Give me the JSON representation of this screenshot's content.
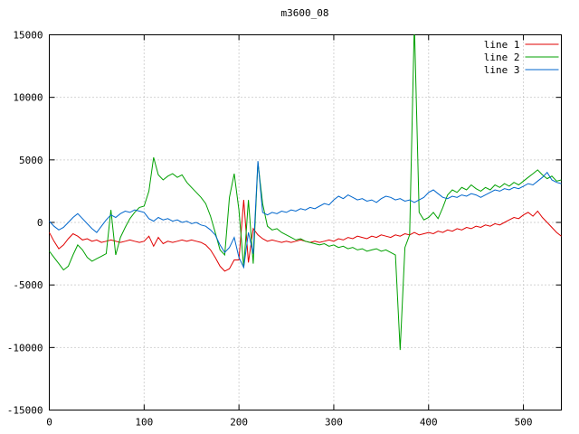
{
  "chart_data": {
    "type": "line",
    "title": "m3600_08",
    "xlabel": "",
    "ylabel": "",
    "xlim": [
      0,
      540
    ],
    "ylim": [
      -15000,
      15000
    ],
    "xticks": [
      0,
      100,
      200,
      300,
      400,
      500
    ],
    "yticks": [
      -15000,
      -10000,
      -5000,
      0,
      5000,
      10000,
      15000
    ],
    "grid": "dotted",
    "legend_position": "top-right-inside",
    "x": [
      0,
      5,
      10,
      15,
      20,
      25,
      30,
      35,
      40,
      45,
      50,
      55,
      60,
      65,
      70,
      75,
      80,
      85,
      90,
      95,
      100,
      105,
      110,
      115,
      120,
      125,
      130,
      135,
      140,
      145,
      150,
      155,
      160,
      165,
      170,
      175,
      180,
      185,
      190,
      195,
      200,
      205,
      210,
      215,
      220,
      225,
      230,
      235,
      240,
      245,
      250,
      255,
      260,
      265,
      270,
      275,
      280,
      285,
      290,
      295,
      300,
      305,
      310,
      315,
      320,
      325,
      330,
      335,
      340,
      345,
      350,
      355,
      360,
      365,
      370,
      375,
      380,
      385,
      390,
      395,
      400,
      405,
      410,
      415,
      420,
      425,
      430,
      435,
      440,
      445,
      450,
      455,
      460,
      465,
      470,
      475,
      480,
      485,
      490,
      495,
      500,
      505,
      510,
      515,
      520,
      525,
      530,
      535,
      540
    ],
    "series": [
      {
        "name": "line 1",
        "color": "#e00000",
        "values": [
          -800,
          -1500,
          -2100,
          -1800,
          -1300,
          -900,
          -1100,
          -1400,
          -1300,
          -1500,
          -1400,
          -1600,
          -1500,
          -1400,
          -1500,
          -1600,
          -1500,
          -1400,
          -1500,
          -1600,
          -1500,
          -1100,
          -1900,
          -1200,
          -1700,
          -1500,
          -1600,
          -1500,
          -1400,
          -1500,
          -1400,
          -1500,
          -1600,
          -1800,
          -2200,
          -2800,
          -3500,
          -3900,
          -3700,
          -3000,
          -3000,
          1800,
          -3200,
          -500,
          -1000,
          -1300,
          -1500,
          -1400,
          -1500,
          -1600,
          -1500,
          -1600,
          -1500,
          -1400,
          -1500,
          -1600,
          -1500,
          -1600,
          -1500,
          -1400,
          -1500,
          -1300,
          -1400,
          -1200,
          -1300,
          -1100,
          -1200,
          -1300,
          -1100,
          -1200,
          -1000,
          -1100,
          -1200,
          -1000,
          -1100,
          -900,
          -1000,
          -800,
          -1000,
          -900,
          -800,
          -900,
          -700,
          -800,
          -600,
          -700,
          -500,
          -600,
          -400,
          -500,
          -300,
          -400,
          -200,
          -300,
          -100,
          -200,
          0,
          200,
          400,
          300,
          600,
          800,
          500,
          900,
          400,
          0,
          -400,
          -800,
          -1100
        ]
      },
      {
        "name": "line 2",
        "color": "#00a000",
        "values": [
          -2300,
          -2800,
          -3300,
          -3800,
          -3500,
          -2600,
          -1800,
          -2200,
          -2800,
          -3100,
          -2900,
          -2700,
          -2500,
          1000,
          -2600,
          -1200,
          -400,
          300,
          800,
          1200,
          1300,
          2500,
          5200,
          3800,
          3400,
          3700,
          3900,
          3600,
          3800,
          3200,
          2800,
          2400,
          2000,
          1500,
          500,
          -800,
          -2200,
          -2600,
          2000,
          3900,
          1000,
          -3600,
          1800,
          -3300,
          4800,
          1500,
          -300,
          -600,
          -500,
          -800,
          -1000,
          -1200,
          -1400,
          -1300,
          -1500,
          -1600,
          -1700,
          -1800,
          -1700,
          -1900,
          -1800,
          -2000,
          -1900,
          -2100,
          -2000,
          -2200,
          -2100,
          -2300,
          -2200,
          -2100,
          -2300,
          -2200,
          -2400,
          -2600,
          -10200,
          -2000,
          -1000,
          16000,
          800,
          200,
          400,
          800,
          300,
          1200,
          2200,
          2600,
          2400,
          2800,
          2600,
          3000,
          2700,
          2500,
          2800,
          2600,
          3000,
          2800,
          3100,
          2900,
          3200,
          3000,
          3300,
          3600,
          3900,
          4200,
          3800,
          3500,
          3700,
          3300,
          3400
        ]
      },
      {
        "name": "line 3",
        "color": "#0066cc",
        "values": [
          100,
          -300,
          -600,
          -400,
          0,
          400,
          700,
          300,
          -100,
          -500,
          -800,
          -300,
          200,
          600,
          400,
          700,
          900,
          800,
          1000,
          900,
          800,
          300,
          100,
          400,
          200,
          300,
          100,
          200,
          0,
          100,
          -100,
          0,
          -200,
          -300,
          -600,
          -1000,
          -1800,
          -2400,
          -2000,
          -1200,
          -2800,
          -3600,
          -800,
          -2500,
          4900,
          800,
          600,
          800,
          700,
          900,
          800,
          1000,
          900,
          1100,
          1000,
          1200,
          1100,
          1300,
          1500,
          1400,
          1800,
          2100,
          1900,
          2200,
          2000,
          1800,
          1900,
          1700,
          1800,
          1600,
          1900,
          2100,
          2000,
          1800,
          1900,
          1700,
          1800,
          1600,
          1800,
          2000,
          2400,
          2600,
          2300,
          2000,
          1900,
          2100,
          2000,
          2200,
          2100,
          2300,
          2200,
          2000,
          2200,
          2400,
          2600,
          2500,
          2700,
          2600,
          2800,
          2700,
          2900,
          3100,
          3000,
          3300,
          3600,
          4000,
          3400,
          3200,
          3100
        ]
      }
    ]
  }
}
